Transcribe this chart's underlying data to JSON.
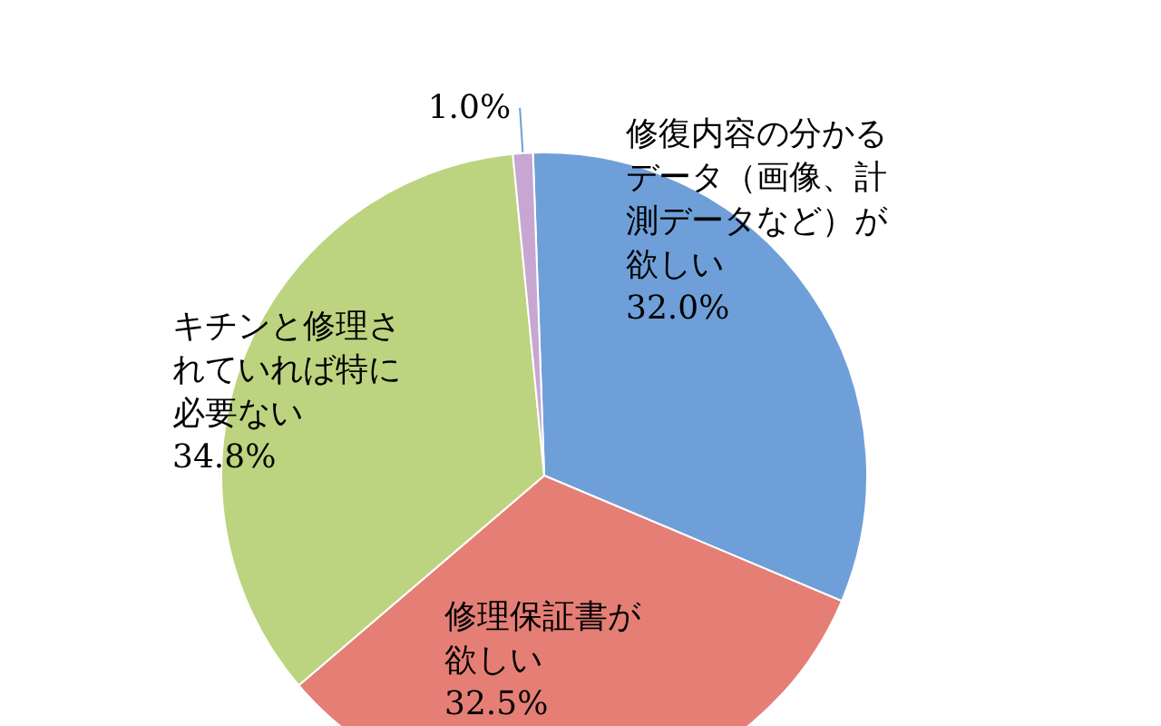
{
  "chart_data": {
    "type": "pie",
    "categories": [
      "修復内容の分かるデータ（画像、計測データなど）が欲しい",
      "修理保証書が欲しい",
      "キチンと修理されていれば特に必要ない",
      null
    ],
    "values": [
      32.0,
      32.5,
      34.8,
      1.0
    ],
    "value_labels": [
      "32.0%",
      "32.5%",
      "34.8%",
      "1.0%"
    ],
    "colors": [
      "#6f9fd8",
      "#e57f76",
      "#bcd47f",
      "#c7a6d2"
    ],
    "legend": false
  }
}
